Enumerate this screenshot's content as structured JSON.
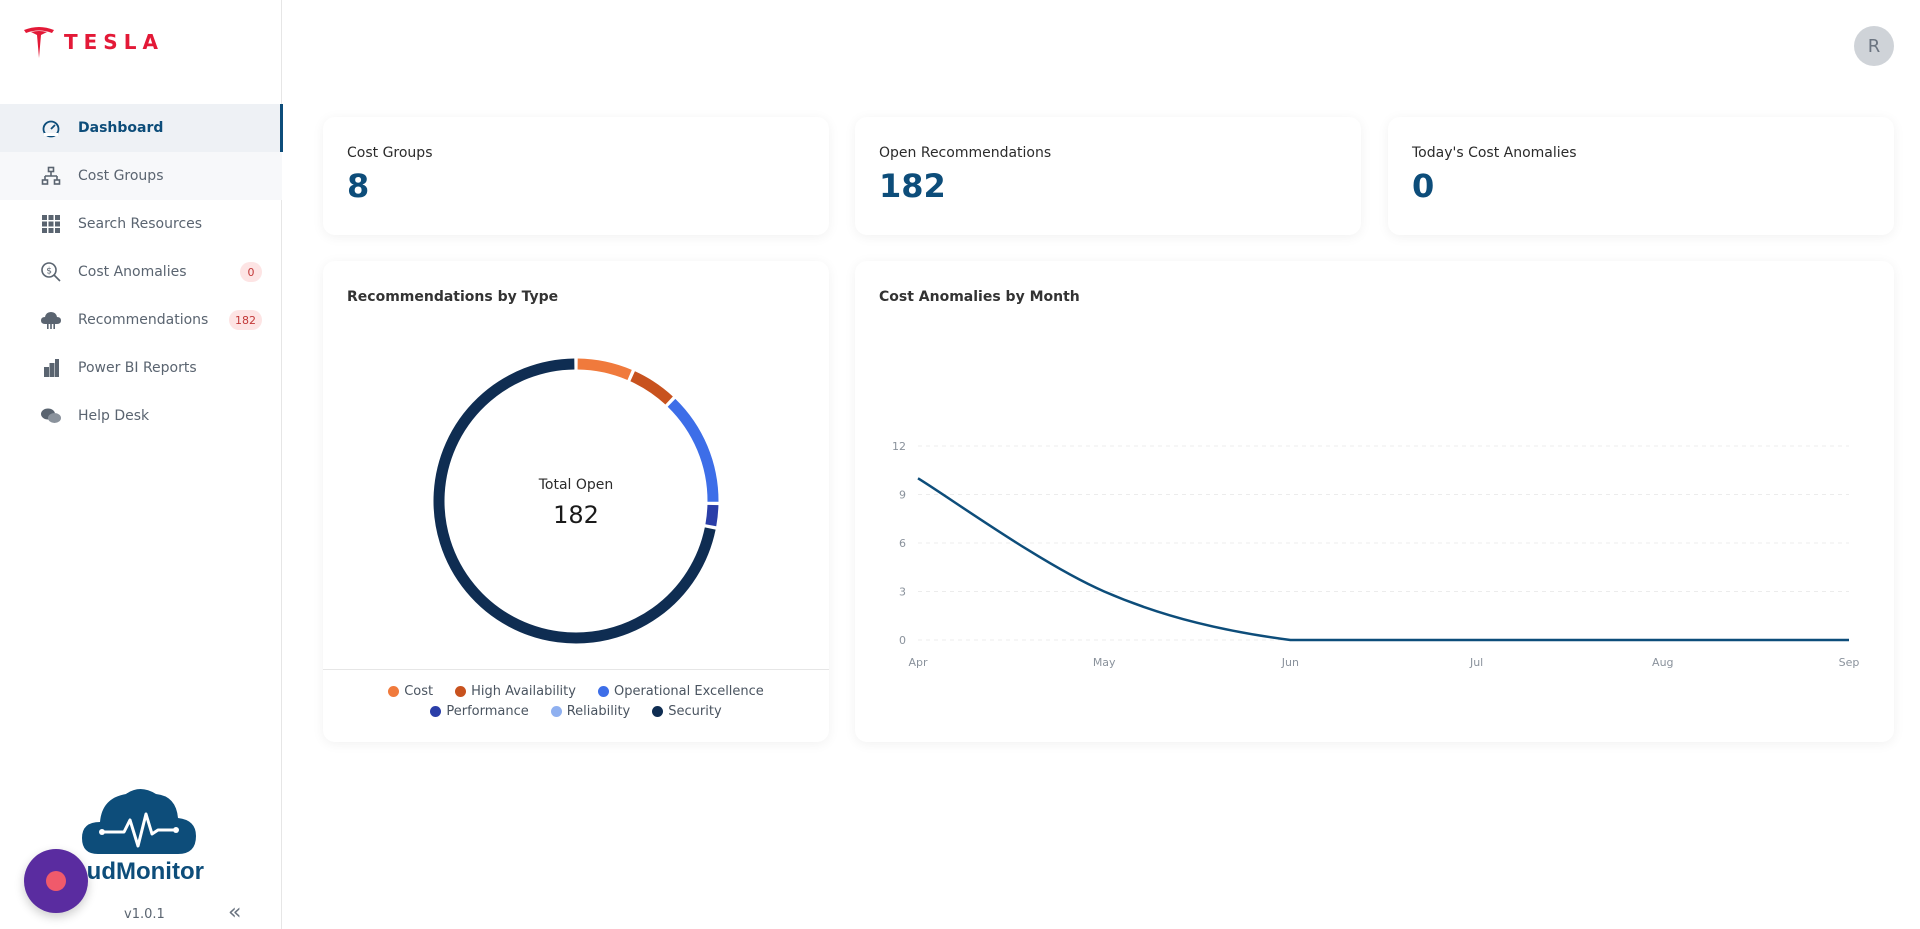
{
  "brand": {
    "logo_text": "TESLA",
    "app_name": "oudMonitor",
    "version": "v1.0.1"
  },
  "user": {
    "avatar_initial": "R"
  },
  "sidebar": {
    "items": [
      {
        "label": "Dashboard",
        "icon": "dashboard-icon"
      },
      {
        "label": "Cost Groups",
        "icon": "hierarchy-icon"
      },
      {
        "label": "Search Resources",
        "icon": "grid-icon"
      },
      {
        "label": "Cost Anomalies",
        "icon": "search-dollar-icon",
        "badge": "0"
      },
      {
        "label": "Recommendations",
        "icon": "cloud-icon",
        "badge": "182"
      },
      {
        "label": "Power BI Reports",
        "icon": "chart-icon"
      },
      {
        "label": "Help Desk",
        "icon": "chat-icon"
      }
    ]
  },
  "stats": [
    {
      "title": "Cost Groups",
      "value": "8"
    },
    {
      "title": "Open Recommendations",
      "value": "182"
    },
    {
      "title": "Today's Cost Anomalies",
      "value": "0"
    }
  ],
  "donut": {
    "title": "Recommendations by Type",
    "center_label": "Total Open",
    "center_value": "182"
  },
  "line": {
    "title": "Cost Anomalies by Month"
  },
  "colors": {
    "primary": "#0d4d7a",
    "tesla_red": "#e31937",
    "badge_bg": "#fde4e4",
    "line": "#0d4d7a"
  },
  "chart_data": [
    {
      "type": "pie",
      "title": "Recommendations by Type",
      "categories": [
        "Cost",
        "High Availability",
        "Operational Excellence",
        "Performance",
        "Reliability",
        "Security"
      ],
      "values": [
        12,
        10,
        24,
        5,
        0,
        131
      ],
      "colors": [
        "#f07a3c",
        "#c8521e",
        "#3d6ee8",
        "#2a3ea8",
        "#8fb0f0",
        "#0f2d52"
      ],
      "legend_rows": [
        [
          "Cost",
          "High Availability",
          "Operational Excellence"
        ],
        [
          "Performance",
          "Reliability",
          "Security"
        ]
      ]
    },
    {
      "type": "line",
      "title": "Cost Anomalies by Month",
      "x": [
        "Apr",
        "May",
        "Jun",
        "Jul",
        "Aug",
        "Sep"
      ],
      "series": [
        {
          "values": [
            10,
            3,
            0,
            0,
            0,
            0
          ]
        }
      ],
      "yticks": [
        0,
        3,
        6,
        9,
        12
      ],
      "ylim": [
        0,
        12
      ],
      "grid": true
    }
  ]
}
